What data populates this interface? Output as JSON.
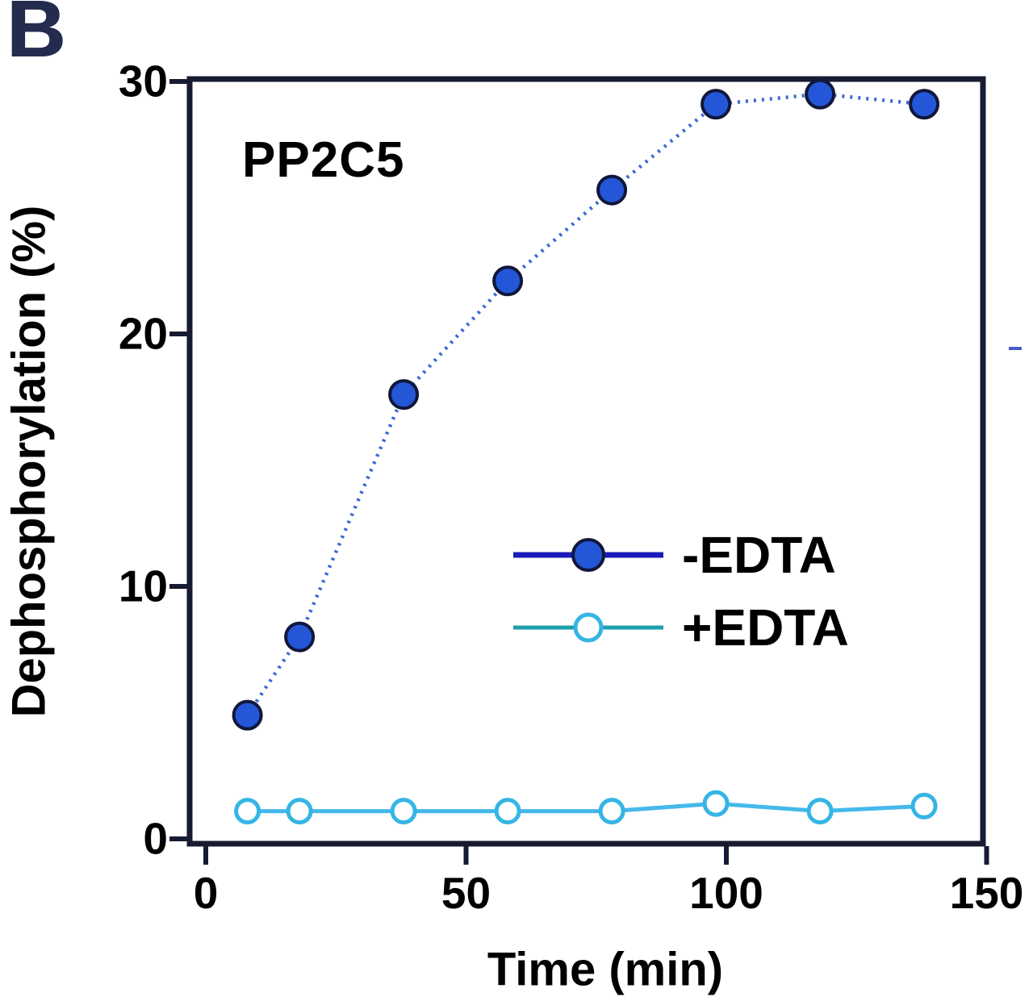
{
  "chart_data": {
    "type": "line",
    "panel_label": "B",
    "title": "PP2C5",
    "xlabel": "Time (min)",
    "ylabel": "Dephosphorylation (%)",
    "xlim": [
      0,
      150
    ],
    "ylim": [
      0,
      30
    ],
    "x_ticks": [
      0,
      50,
      100,
      150
    ],
    "y_ticks": [
      0,
      10,
      20,
      30
    ],
    "grid": false,
    "legend_position": "inside-middle-right",
    "frame_color": "#161b32",
    "background_color": "#ffffff",
    "series": [
      {
        "name": "-EDTA",
        "x": [
          8,
          18,
          38,
          58,
          78,
          98,
          118,
          138
        ],
        "y": [
          4.9,
          8.0,
          17.6,
          22.1,
          25.7,
          29.1,
          29.5,
          29.1
        ],
        "marker": "filled-circle",
        "marker_color": "#2456d8",
        "marker_edge_color": "#10173a",
        "line_color": "#3a6ad4",
        "line_style": "dotted",
        "legend_line_color": "#1b1bb8"
      },
      {
        "name": "+EDTA",
        "x": [
          8,
          18,
          38,
          58,
          78,
          98,
          118,
          138
        ],
        "y": [
          1.1,
          1.1,
          1.1,
          1.1,
          1.1,
          1.4,
          1.1,
          1.3
        ],
        "marker": "open-circle",
        "marker_color": "#ffffff",
        "marker_edge_color": "#35b5e5",
        "line_color": "#45b8ea",
        "line_style": "solid",
        "legend_line_color": "#1f9fae"
      }
    ]
  }
}
